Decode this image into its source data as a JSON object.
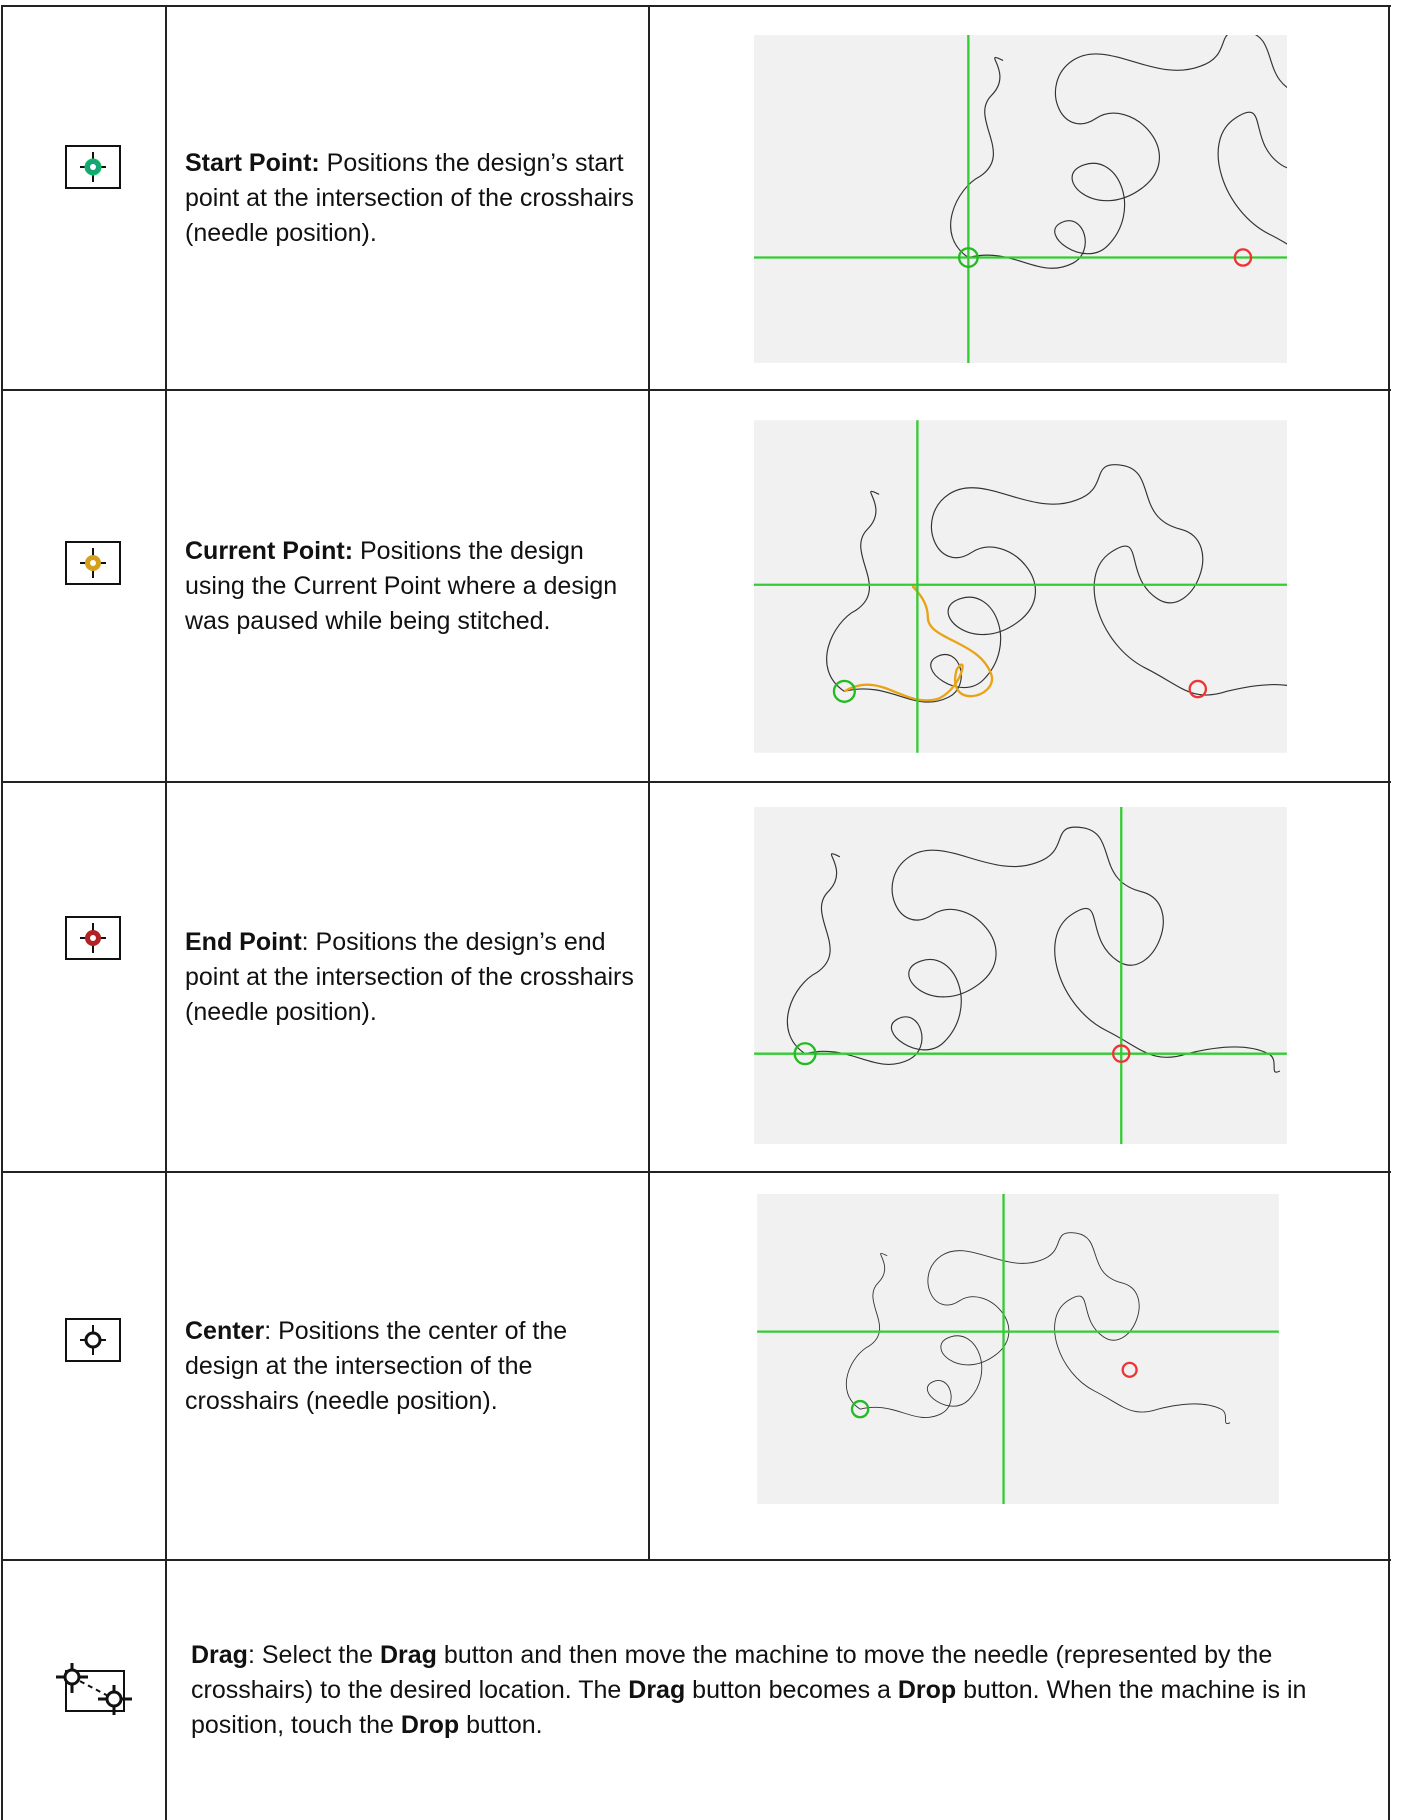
{
  "table": {
    "rows": [
      {
        "text": [
          {
            "b": "Start Point:"
          },
          {
            "t": " Positions the design’s start point at the intersection of the crosshairs (needle position)."
          }
        ]
      },
      {
        "text": [
          {
            "b": "Current Point:"
          },
          {
            "t": " Positions the design using the Current Point where a design was paused while being stitched."
          }
        ]
      },
      {
        "text": [
          {
            "b": "End Point"
          },
          {
            "t": ": Positions the design’s end point at the intersection of the crosshairs (needle position)."
          }
        ]
      },
      {
        "text": [
          {
            "b": "Center"
          },
          {
            "t": ": Positions the center of the design at the intersection of the crosshairs (needle position)."
          }
        ]
      },
      {
        "text": [
          {
            "b": "Drag"
          },
          {
            "t": ": Select the "
          },
          {
            "b": "Drag"
          },
          {
            "t": " button and then move the machine to move the needle (represented by the crosshairs) to the desired location. The "
          },
          {
            "b": "Drag"
          },
          {
            "t": " button becomes a "
          },
          {
            "b": "Drop"
          },
          {
            "t": " button. When the machine is in position, touch the "
          },
          {
            "b": "Drop"
          },
          {
            "t": " button."
          }
        ]
      }
    ]
  }
}
